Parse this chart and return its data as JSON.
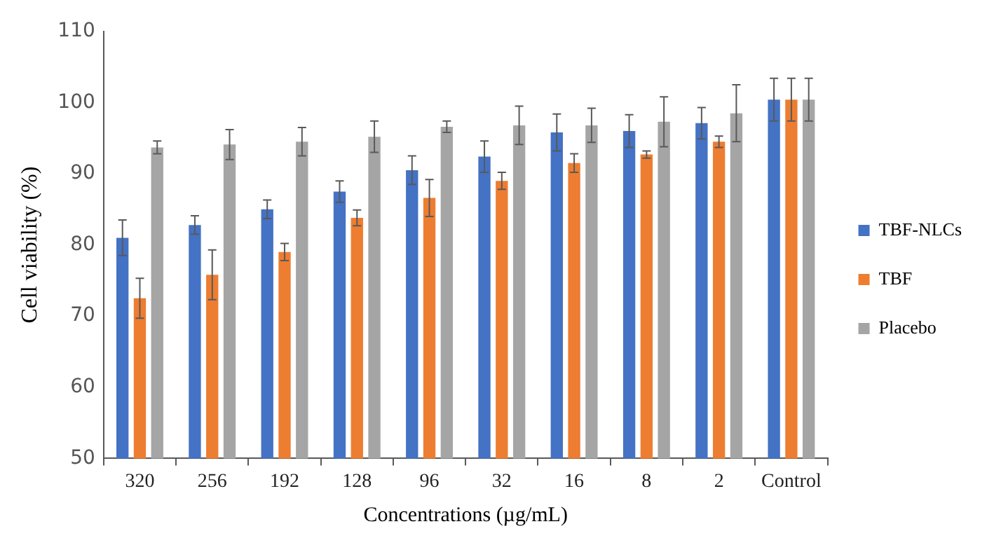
{
  "chart_data": {
    "type": "bar",
    "xlabel": "Concentrations (µg/mL)",
    "ylabel": "Cell viability (%)",
    "categories": [
      "320",
      "256",
      "192",
      "128",
      "96",
      "32",
      "16",
      "8",
      "2",
      "Control"
    ],
    "series": [
      {
        "name": "TBF-NLCs",
        "color": "#4472c4",
        "values": [
          81,
          82.8,
          85,
          87.5,
          90.5,
          92.4,
          95.8,
          96,
          97.1,
          100.4
        ],
        "errors": [
          2.5,
          1.3,
          1.3,
          1.5,
          2,
          2.2,
          2.6,
          2.3,
          2.2,
          3
        ]
      },
      {
        "name": "TBF",
        "color": "#ed7d31",
        "values": [
          72.5,
          75.8,
          79,
          83.8,
          86.6,
          89,
          91.5,
          92.7,
          94.5,
          100.4
        ],
        "errors": [
          2.8,
          3.5,
          1.2,
          1.1,
          2.6,
          1.2,
          1.3,
          0.5,
          0.8,
          3
        ]
      },
      {
        "name": "Placebo",
        "color": "#a5a5a5",
        "values": [
          93.7,
          94.1,
          94.5,
          95.2,
          96.6,
          96.8,
          96.8,
          97.3,
          98.5,
          100.4
        ],
        "errors": [
          0.9,
          2.1,
          2,
          2.2,
          0.8,
          2.7,
          2.4,
          3.5,
          4,
          3
        ]
      }
    ],
    "ylim": [
      50,
      110
    ],
    "yticks": [
      50,
      60,
      70,
      80,
      90,
      100,
      110
    ],
    "grid": false,
    "legend": "right"
  }
}
